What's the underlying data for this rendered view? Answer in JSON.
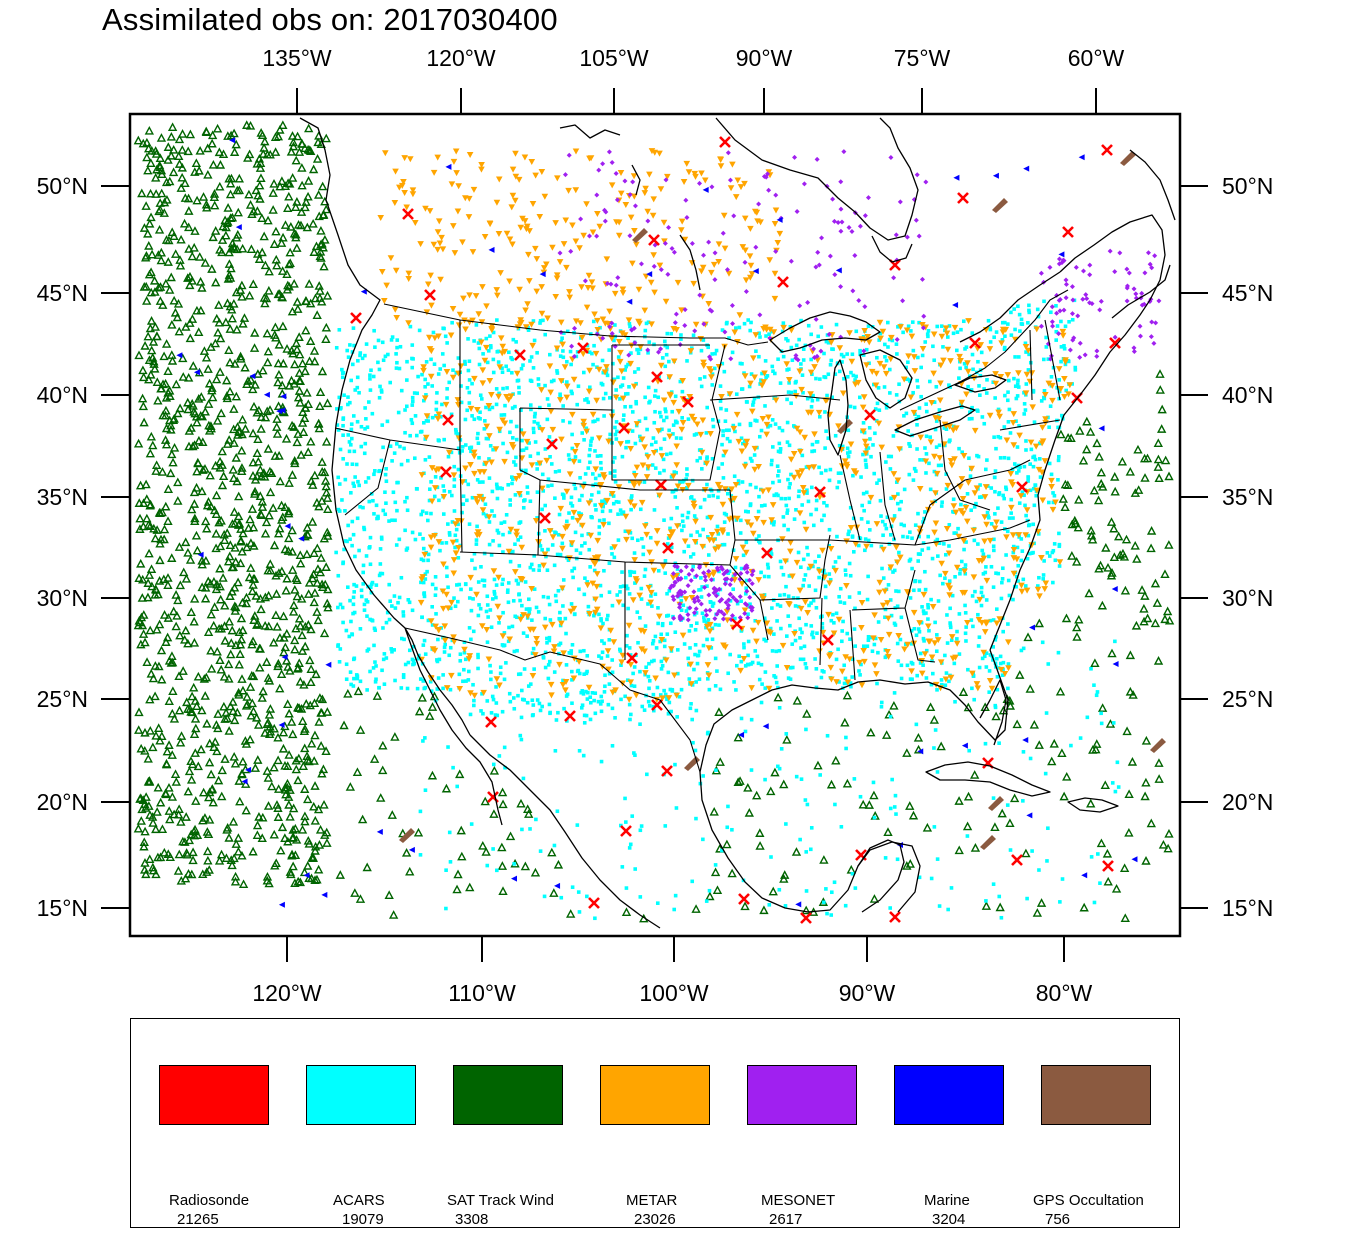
{
  "title": "Assimilated obs on: 2017030400",
  "axes": {
    "top_lon_labels": [
      "135°W",
      "120°W",
      "105°W",
      "90°W",
      "75°W",
      "60°W"
    ],
    "bottom_lon_labels": [
      "120°W",
      "110°W",
      "100°W",
      "90°W",
      "80°W"
    ],
    "left_lat_labels": [
      "50°N",
      "45°N",
      "40°N",
      "35°N",
      "30°N",
      "25°N",
      "20°N",
      "15°N"
    ],
    "right_lat_labels": [
      "50°N",
      "45°N",
      "40°N",
      "35°N",
      "30°N",
      "25°N",
      "20°N",
      "15°N"
    ]
  },
  "legend": [
    {
      "label": "Radiosonde",
      "count": "21265",
      "color": "#ff0000"
    },
    {
      "label": "ACARS",
      "count": "19079",
      "color": "#00ffff"
    },
    {
      "label": "SAT Track Wind",
      "count": "3308",
      "color": "#006400"
    },
    {
      "label": "METAR",
      "count": "23026",
      "color": "#ffa500"
    },
    {
      "label": "MESONET",
      "count": "2617",
      "color": "#a020f0"
    },
    {
      "label": "Marine",
      "count": "3204",
      "color": "#0000ff"
    },
    {
      "label": "GPS Occultation",
      "count": "756",
      "color": "#8b5a40"
    }
  ]
}
